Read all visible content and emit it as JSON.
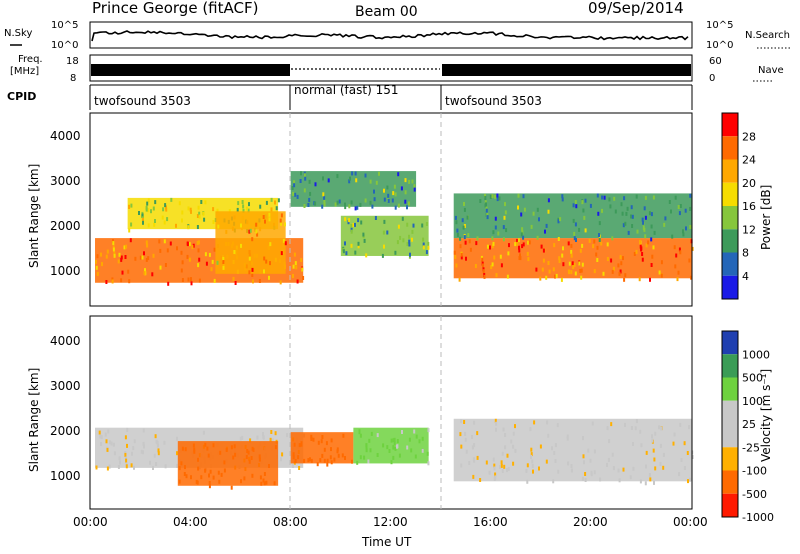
{
  "header": {
    "station": "Prince George (fitACF)",
    "beam": "Beam 00",
    "date": "09/Sep/2014"
  },
  "noise_panel": {
    "left_label": "N.Sky",
    "right_label": "N.Search",
    "left_ticks": [
      "10^5",
      "10^0"
    ],
    "right_ticks": [
      "10^5",
      "10^0"
    ]
  },
  "freq_panel": {
    "left_label_1": "Freq.",
    "left_label_2": "[MHz]",
    "left_ticks": [
      "18",
      "8"
    ],
    "right_label": "Nave",
    "right_ticks": [
      "60",
      "0"
    ]
  },
  "cpid_panel": {
    "label": "CPID",
    "modes": [
      {
        "name": "twofsound 3503",
        "start_hour": 0,
        "end_hour": 8
      },
      {
        "name": "normal (fast) 151",
        "start_hour": 8,
        "end_hour": 14
      },
      {
        "name": "twofsound 3503",
        "start_hour": 14,
        "end_hour": 24
      }
    ]
  },
  "time_axis": {
    "label": "Time UT",
    "ticks": [
      "00:00",
      "04:00",
      "08:00",
      "12:00",
      "16:00",
      "20:00",
      "00:00"
    ],
    "range_hours": [
      0,
      24
    ]
  },
  "range_axis": {
    "label": "Slant Range [km]",
    "ticks": [
      "1000",
      "2000",
      "3000",
      "4000"
    ],
    "range_km": [
      180,
      4500
    ]
  },
  "power_colorbar": {
    "label": "Power [dB]",
    "ticks": [
      "28",
      "24",
      "20",
      "16",
      "12",
      "8",
      "4"
    ],
    "colors": [
      "#ff0000",
      "#ff6a00",
      "#ffa800",
      "#f6dc00",
      "#86c63c",
      "#3d9a5a",
      "#2466b8",
      "#1a1ae6"
    ]
  },
  "velocity_colorbar": {
    "label": "Velocity [m s⁻¹]",
    "ticks": [
      "1000",
      "500",
      "100",
      "25",
      "-25",
      "-100",
      "-500",
      "-1000"
    ],
    "colors": [
      "#1f3fb0",
      "#3a9c56",
      "#6ed23f",
      "#c8c8c8",
      "#c8c8c8",
      "#ffb000",
      "#ff6a00",
      "#ff1a00"
    ]
  },
  "chart_data": {
    "type": "heatmap",
    "title": "Prince George (fitACF) Beam 00 09/Sep/2014",
    "xlabel": "Time UT",
    "ylabel": "Slant Range [km]",
    "xlim_hours": [
      0,
      24
    ],
    "ylim_km": [
      180,
      4500
    ],
    "panels": [
      {
        "name": "Power [dB]",
        "regions": [
          {
            "t0": 0.2,
            "t1": 8.5,
            "r0": 700,
            "r1": 1700,
            "value": 24
          },
          {
            "t0": 1.5,
            "t1": 7.5,
            "r0": 1900,
            "r1": 2600,
            "value": 16
          },
          {
            "t0": 5.0,
            "t1": 7.8,
            "r0": 900,
            "r1": 2300,
            "value": 22
          },
          {
            "t0": 8.0,
            "t1": 13.0,
            "r0": 2400,
            "r1": 3200,
            "value": 10
          },
          {
            "t0": 10.0,
            "t1": 13.5,
            "r0": 1300,
            "r1": 2200,
            "value": 12
          },
          {
            "t0": 14.5,
            "t1": 24.0,
            "r0": 800,
            "r1": 1700,
            "value": 24
          },
          {
            "t0": 14.5,
            "t1": 24.0,
            "r0": 1700,
            "r1": 2700,
            "value": 10
          }
        ]
      },
      {
        "name": "Velocity [m s-1]",
        "regions": [
          {
            "t0": 0.2,
            "t1": 8.5,
            "r0": 1100,
            "r1": 2000,
            "value": 0
          },
          {
            "t0": 3.5,
            "t1": 7.5,
            "r0": 700,
            "r1": 1700,
            "value": -500
          },
          {
            "t0": 8.0,
            "t1": 10.5,
            "r0": 1200,
            "r1": 1900,
            "value": -500
          },
          {
            "t0": 10.5,
            "t1": 13.5,
            "r0": 1200,
            "r1": 2000,
            "value": 100
          },
          {
            "t0": 14.5,
            "t1": 24.0,
            "r0": 800,
            "r1": 2200,
            "value": 0
          }
        ]
      }
    ]
  }
}
